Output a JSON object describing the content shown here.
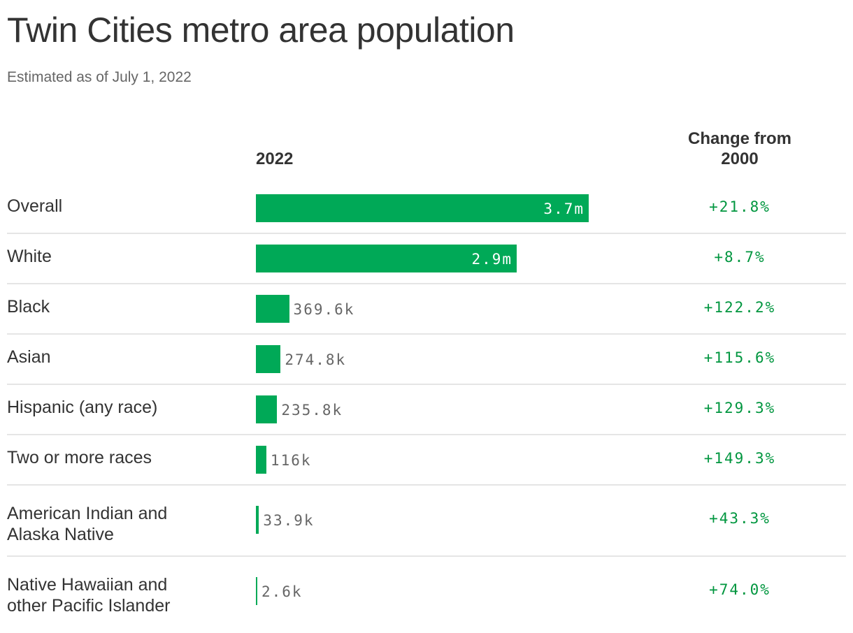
{
  "title": "Twin Cities metro area population",
  "subtitle": "Estimated as of July 1, 2022",
  "chart_data": {
    "type": "bar",
    "orientation": "horizontal",
    "columns": {
      "value": "2022",
      "change": "Change from 2000"
    },
    "bar_color": "#00a957",
    "change_color": "#00963f",
    "rows": [
      {
        "label": "Overall",
        "value": 3700000,
        "value_label": "3.7m",
        "change": "+21.8%"
      },
      {
        "label": "White",
        "value": 2900000,
        "value_label": "2.9m",
        "change": "+8.7%"
      },
      {
        "label": "Black",
        "value": 369600,
        "value_label": "369.6k",
        "change": "+122.2%"
      },
      {
        "label": "Asian",
        "value": 274800,
        "value_label": "274.8k",
        "change": "+115.6%"
      },
      {
        "label": "Hispanic (any race)",
        "value": 235800,
        "value_label": "235.8k",
        "change": "+129.3%"
      },
      {
        "label": "Two or more races",
        "value": 116000,
        "value_label": "116k",
        "change": "+149.3%"
      },
      {
        "label": "American Indian and Alaska Native",
        "value": 33900,
        "value_label": "33.9k",
        "change": "+43.3%"
      },
      {
        "label": "Native Hawaiian and other Pacific Islander",
        "value": 2600,
        "value_label": "2.6k",
        "change": "+74.0%"
      }
    ]
  }
}
